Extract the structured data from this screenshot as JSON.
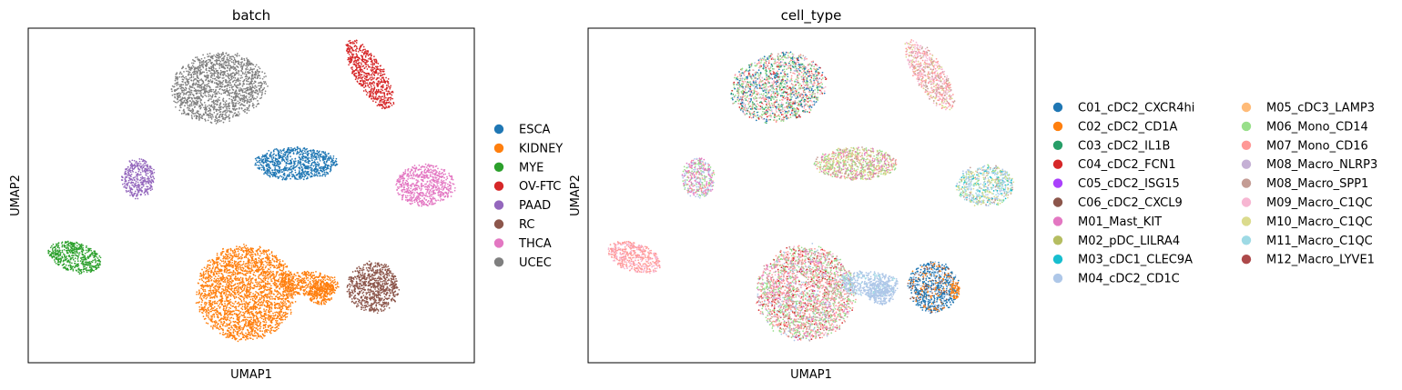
{
  "chart_data": [
    {
      "type": "scatter",
      "title": "batch",
      "xlabel": "UMAP1",
      "ylabel": "UMAP2",
      "grid": false,
      "axis_ticks": false,
      "legend_position": "right",
      "series": [
        {
          "name": "ESCA",
          "color": "#1f77b4"
        },
        {
          "name": "KIDNEY",
          "color": "#ff7f0e"
        },
        {
          "name": "MYE",
          "color": "#2ca02c"
        },
        {
          "name": "OV-FTC",
          "color": "#d62728"
        },
        {
          "name": "PAAD",
          "color": "#9467bd"
        },
        {
          "name": "RC",
          "color": "#8c564b"
        },
        {
          "name": "THCA",
          "color": "#e377c2"
        },
        {
          "name": "UCEC",
          "color": "#7f7f7f"
        }
      ]
    },
    {
      "type": "scatter",
      "title": "cell_type",
      "xlabel": "UMAP1",
      "ylabel": "UMAP2",
      "grid": false,
      "axis_ticks": false,
      "legend_position": "right",
      "legend_columns": 2,
      "series": [
        {
          "name": "C01_cDC2_CXCR4hi",
          "color": "#1f77b4"
        },
        {
          "name": "C02_cDC2_CD1A",
          "color": "#ff7f0e"
        },
        {
          "name": "C03_cDC2_IL1B",
          "color": "#279e68"
        },
        {
          "name": "C04_cDC2_FCN1",
          "color": "#d62728"
        },
        {
          "name": "C05_cDC2_ISG15",
          "color": "#aa40fc"
        },
        {
          "name": "C06_cDC2_CXCL9",
          "color": "#8c564b"
        },
        {
          "name": "M01_Mast_KIT",
          "color": "#e377c2"
        },
        {
          "name": "M02_pDC_LILRA4",
          "color": "#b5bd61"
        },
        {
          "name": "M03_cDC1_CLEC9A",
          "color": "#17becf"
        },
        {
          "name": "M04_cDC2_CD1C",
          "color": "#aec7e8"
        },
        {
          "name": "M05_cDC3_LAMP3",
          "color": "#ffbb78"
        },
        {
          "name": "M06_Mono_CD14",
          "color": "#98df8a"
        },
        {
          "name": "M07_Mono_CD16",
          "color": "#ff9896"
        },
        {
          "name": "M08_Macro_NLRP3",
          "color": "#c5b0d5"
        },
        {
          "name": "M08_Macro_SPP1",
          "color": "#c49c94"
        },
        {
          "name": "M09_Macro_C1QC",
          "color": "#f7b6d2"
        },
        {
          "name": "M10_Macro_C1QC",
          "color": "#dbdb8d"
        },
        {
          "name": "M11_Macro_C1QC",
          "color": "#9edae5"
        },
        {
          "name": "M12_Macro_LYVE1",
          "color": "#ad494a"
        }
      ]
    }
  ]
}
